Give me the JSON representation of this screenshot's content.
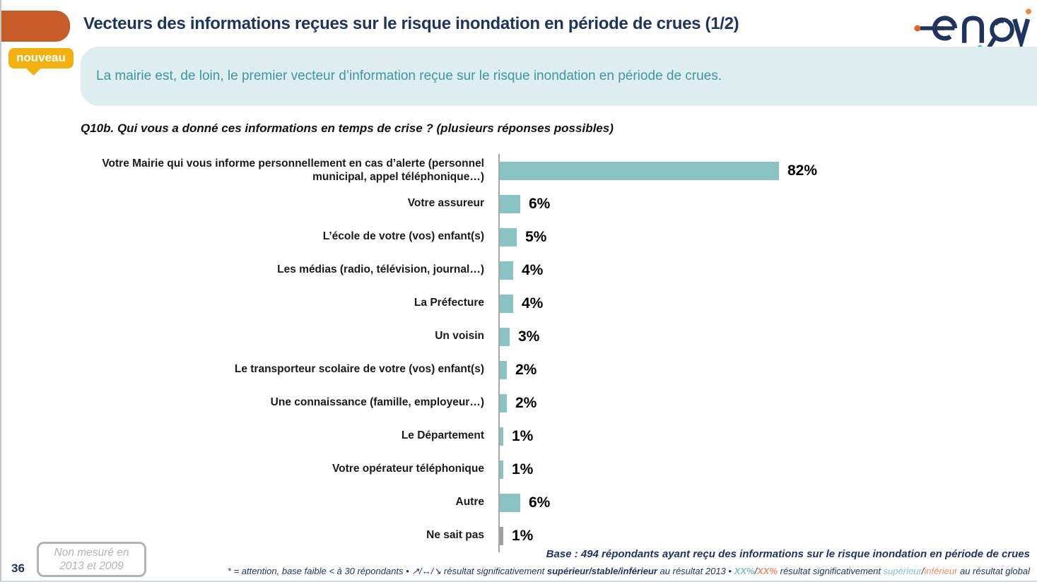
{
  "slide": {
    "title": "Vecteurs des informations reçues sur le risque inondation en période de crues (1/2)",
    "badge": "nouveau",
    "banner": "La mairie est, de loin, le premier vecteur d’information reçue sur le risque inondation en période de crues.",
    "question": "Q10b. Qui vous a donné ces informations en temps de crise ? (plusieurs réponses possibles)",
    "page_number": "36",
    "not_measured_line1": "Non mesuré en",
    "not_measured_line2": "2013 et 2009",
    "base_note": "Base : 494 répondants ayant reçu des informations sur le risque inondation en période de crues",
    "logo_name": "enov"
  },
  "footer": {
    "part1": "* = attention, base faible < à 30 répondants • ",
    "arrows": "↗/↔/↘",
    "part2": " résultat significativement ",
    "bold2": "supérieur/stable/inférieur",
    "part3": " au résultat 2013 • ",
    "xx_sup": "XX%",
    "slash1": "/",
    "xx_inf": "XX%",
    "part4": " résultat significativement ",
    "sup_label": "supérieur",
    "slash2": "/",
    "inf_label": "inférieur",
    "part5": " au résultat global"
  },
  "colors": {
    "title_navy": "#1f3560",
    "orange_tab": "#c75b28",
    "badge_gold": "#f2b10e",
    "banner_bg": "#ddedf0",
    "banner_text": "#3f96a0",
    "bar_teal": "#8ac3c3",
    "bar_gray": "#a0a0a0",
    "footnote_teal": "#82c0cb",
    "footnote_salmon": "#e78e6d"
  },
  "chart_data": {
    "type": "bar",
    "orientation": "horizontal",
    "title": "Q10b. Qui vous a donné ces informations en temps de crise ? (plusieurs réponses possibles)",
    "unit": "%",
    "xlim": [
      0,
      100
    ],
    "grid": false,
    "legend": false,
    "categories": [
      "Votre Mairie qui vous informe personnellement en cas d’alerte (personnel municipal, appel téléphonique…)",
      "Votre assureur",
      "L’école de votre (vos) enfant(s)",
      "Les médias (radio, télévision, journal…)",
      "La Préfecture",
      "Un voisin",
      "Le transporteur scolaire de votre (vos) enfant(s)",
      "Une connaissance (famille, employeur…)",
      "Le Département",
      "Votre opérateur téléphonique",
      "Autre",
      "Ne sait pas"
    ],
    "values": [
      82,
      6,
      5,
      4,
      4,
      3,
      2,
      2,
      1,
      1,
      6,
      1
    ],
    "value_labels": [
      "82%",
      "6%",
      "5%",
      "4%",
      "4%",
      "3%",
      "2%",
      "2%",
      "1%",
      "1%",
      "6%",
      "1%"
    ],
    "bar_colors": [
      "#8ac3c3",
      "#8ac3c3",
      "#8ac3c3",
      "#8ac3c3",
      "#8ac3c3",
      "#8ac3c3",
      "#8ac3c3",
      "#8ac3c3",
      "#8ac3c3",
      "#8ac3c3",
      "#8ac3c3",
      "#a0a0a0"
    ]
  }
}
